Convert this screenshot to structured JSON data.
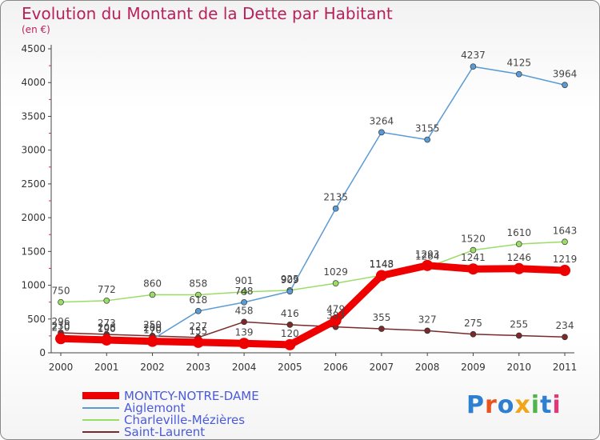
{
  "title": "Evolution du Montant de la Dette par Habitant",
  "unit": "(en €)",
  "logo": {
    "text": "Proxiti",
    "colors": [
      "#2f7fd1",
      "#e8531e",
      "#2f7fd1",
      "#f2a51a",
      "#4fb44a",
      "#2f7fd1",
      "#e0397a"
    ]
  },
  "chart_data": {
    "type": "line",
    "title": "Evolution du Montant de la Dette par Habitant",
    "subtitle": "(en €)",
    "xlabel": "",
    "ylabel": "",
    "categories": [
      "2000",
      "2001",
      "2002",
      "2003",
      "2004",
      "2005",
      "2006",
      "2007",
      "2008",
      "2009",
      "2010",
      "2011"
    ],
    "ylim": [
      0,
      4500
    ],
    "yticks": [
      0,
      500,
      1000,
      1500,
      2000,
      2500,
      3000,
      3500,
      4000,
      4500
    ],
    "grid": false,
    "legend_position": "bottom-left",
    "series": [
      {
        "name": "MONTCY-NOTRE-DAME",
        "color": "#ee0000",
        "values": [
          210,
          190,
          170,
          155,
          139,
          120,
          479,
          1143,
          1293,
          1241,
          1246,
          1219
        ],
        "labels": [
          "210",
          "190",
          "170",
          "155",
          "139",
          "120",
          "479",
          "1143",
          "1293",
          "1241",
          "1246",
          "1219"
        ]
      },
      {
        "name": "Aiglemont",
        "color": "#5b9bd5",
        "values": [
          230,
          208,
          200,
          618,
          748,
          909,
          2135,
          3264,
          3155,
          4237,
          4125,
          3964
        ],
        "labels": [
          "230",
          "208",
          "200",
          "618",
          "748",
          "909",
          "2135",
          "3264",
          "3155",
          "4237",
          "4125",
          "3964"
        ]
      },
      {
        "name": "Charleville-Mézières",
        "color": "#99dd66",
        "values": [
          750,
          772,
          860,
          858,
          901,
          925,
          1029,
          1148,
          1264,
          1520,
          1610,
          1643
        ],
        "labels": [
          "750",
          "772",
          "860",
          "858",
          "901",
          "925",
          "1029",
          "1148",
          "1264",
          "1520",
          "1610",
          "1643"
        ]
      },
      {
        "name": "Saint-Laurent",
        "color": "#7a2a2a",
        "values": [
          296,
          273,
          250,
          227,
          458,
          416,
          383,
          355,
          327,
          275,
          255,
          234
        ],
        "labels": [
          "296",
          "273",
          "250",
          "227",
          "458",
          "416",
          "383",
          "355",
          "327",
          "275",
          "255",
          "234"
        ]
      }
    ]
  }
}
